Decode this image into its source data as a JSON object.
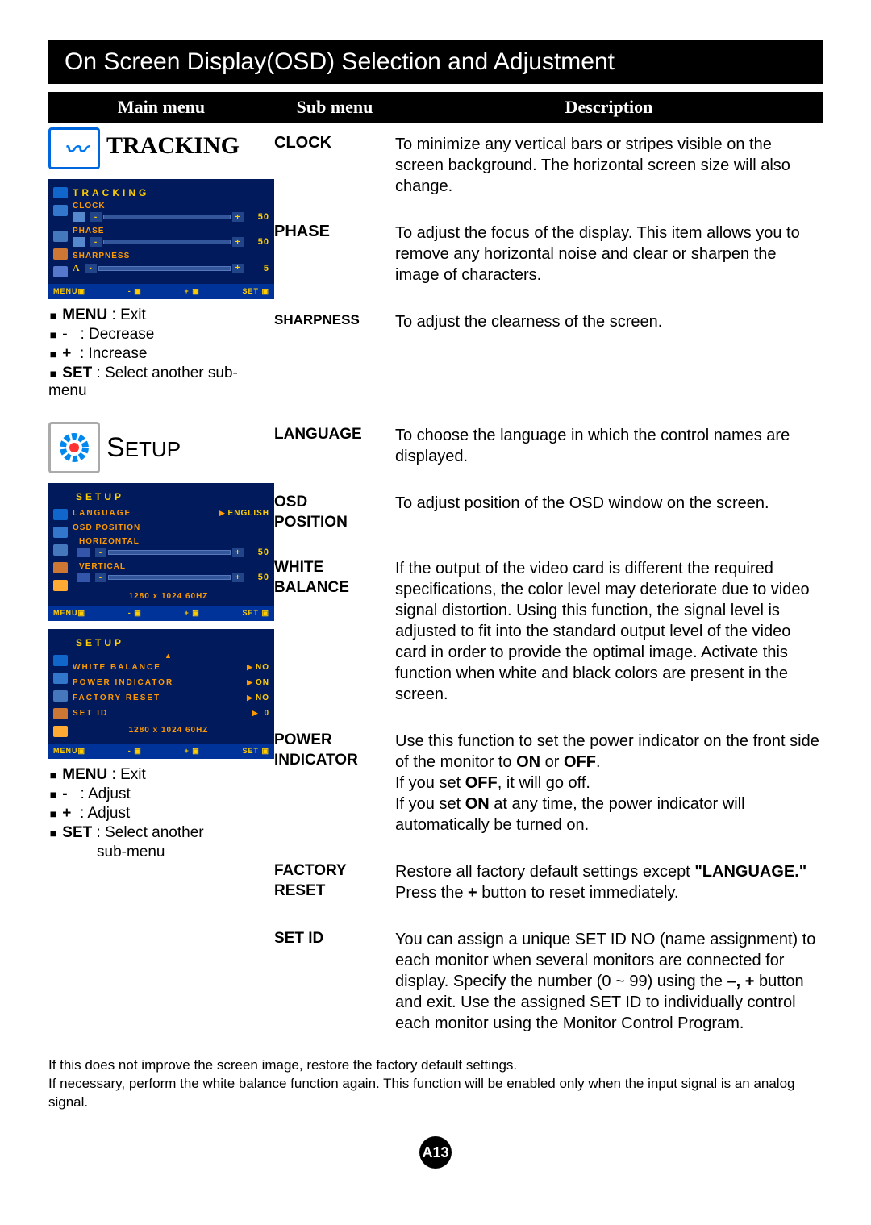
{
  "colors": {
    "title_bg": "#000000",
    "title_fg": "#ffffff",
    "osd_bg": "#001a5b",
    "osd_text": "#ff9900",
    "osd_highlight": "#ffcc00",
    "osd_footer_bg": "#003399"
  },
  "title": "On Screen Display(OSD) Selection and Adjustment",
  "columns": {
    "main": "Main menu",
    "sub": "Sub menu",
    "desc": "Description"
  },
  "tracking": {
    "heading": "TRACKING",
    "osd": {
      "title": "TRACKING",
      "items": [
        {
          "label": "CLOCK",
          "value": "50"
        },
        {
          "label": "PHASE",
          "value": "50"
        },
        {
          "label": "SHARPNESS",
          "value": "5"
        }
      ],
      "footer": [
        "MENU▣",
        "- ▣",
        "+ ▣",
        "SET ▣"
      ]
    },
    "legend": [
      {
        "key": "MENU",
        "text": ": Exit"
      },
      {
        "key": "-",
        "text": ": Decrease"
      },
      {
        "key": "+",
        "text": ": Increase"
      },
      {
        "key": "SET",
        "text": ": Select another sub-menu"
      }
    ],
    "subs": [
      {
        "name": "CLOCK",
        "desc": "To minimize any vertical bars or stripes visible on the screen background. The horizontal screen size will also change."
      },
      {
        "name": "PHASE",
        "desc": "To adjust the focus of the display. This item allows you to remove any horizontal noise and clear or sharpen the image of characters."
      },
      {
        "name": "SHARPNESS",
        "desc": "To adjust the clearness of the screen."
      }
    ]
  },
  "setup": {
    "heading": "SETUP",
    "osd1": {
      "title": "SETUP",
      "lang_label": "LANGUAGE",
      "lang_value": "ENGLISH",
      "osdpos_label": "OSD POSITION",
      "h_label": "HORIZONTAL",
      "h_value": "50",
      "v_label": "VERTICAL",
      "v_value": "50",
      "res": "1280 x 1024 60HZ",
      "footer": [
        "MENU▣",
        "- ▣",
        "+ ▣",
        "SET ▣"
      ]
    },
    "osd2": {
      "title": "SETUP",
      "rows": [
        {
          "label": "WHITE BALANCE",
          "value": "NO"
        },
        {
          "label": "POWER INDICATOR",
          "value": "ON"
        },
        {
          "label": "FACTORY RESET",
          "value": "NO"
        },
        {
          "label": "SET ID",
          "value": "0"
        }
      ],
      "res": "1280 x 1024 60HZ",
      "footer": [
        "MENU▣",
        "- ▣",
        "+ ▣",
        "SET ▣"
      ]
    },
    "legend": [
      {
        "key": "MENU",
        "text": ": Exit"
      },
      {
        "key": "-",
        "text": ": Adjust"
      },
      {
        "key": "+",
        "text": ": Adjust"
      },
      {
        "key": "SET",
        "text": ": Select another"
      },
      {
        "key": "",
        "text": "  sub-menu"
      }
    ],
    "subs": [
      {
        "name": "LANGUAGE",
        "desc": "To choose the language in which the control names are displayed."
      },
      {
        "name": "OSD POSITION",
        "desc": "To adjust position of the OSD window on the screen."
      },
      {
        "name": "WHITE BALANCE",
        "desc": "If the output of the video card is different the required specifications, the color level may deteriorate due to video signal distortion. Using this function, the signal level is adjusted to fit into the standard output level of the video card in order to provide the optimal image. Activate this function when white and black colors are present in the screen."
      },
      {
        "name": "POWER INDICATOR",
        "desc_html": "Use this function to set the power indicator on the front side of the monitor to <b>ON</b> or <b>OFF</b>.<br>If you set <b>OFF</b>, it will go off.<br>If you set <b>ON</b> at any time, the power indicator will automatically be turned on."
      },
      {
        "name": "FACTORY RESET",
        "desc_html": "Restore all factory default settings except <b>\"LANGUAGE.\"</b><br>Press the <b>+</b> button to reset immediately."
      },
      {
        "name": "SET ID",
        "desc_html": "You can assign a unique SET ID NO (name assignment) to each monitor when several monitors are connected for display. Specify the number (0 ~ 99) using the <b>–, +</b> button and exit. Use the assigned SET ID to individually control each monitor using the Monitor Control Program."
      }
    ]
  },
  "footnote": "If this does not improve the screen image, restore the factory default settings.\nIf necessary, perform the white balance function again. This function will be enabled only when the input signal is an analog signal.",
  "page_number": "A13"
}
